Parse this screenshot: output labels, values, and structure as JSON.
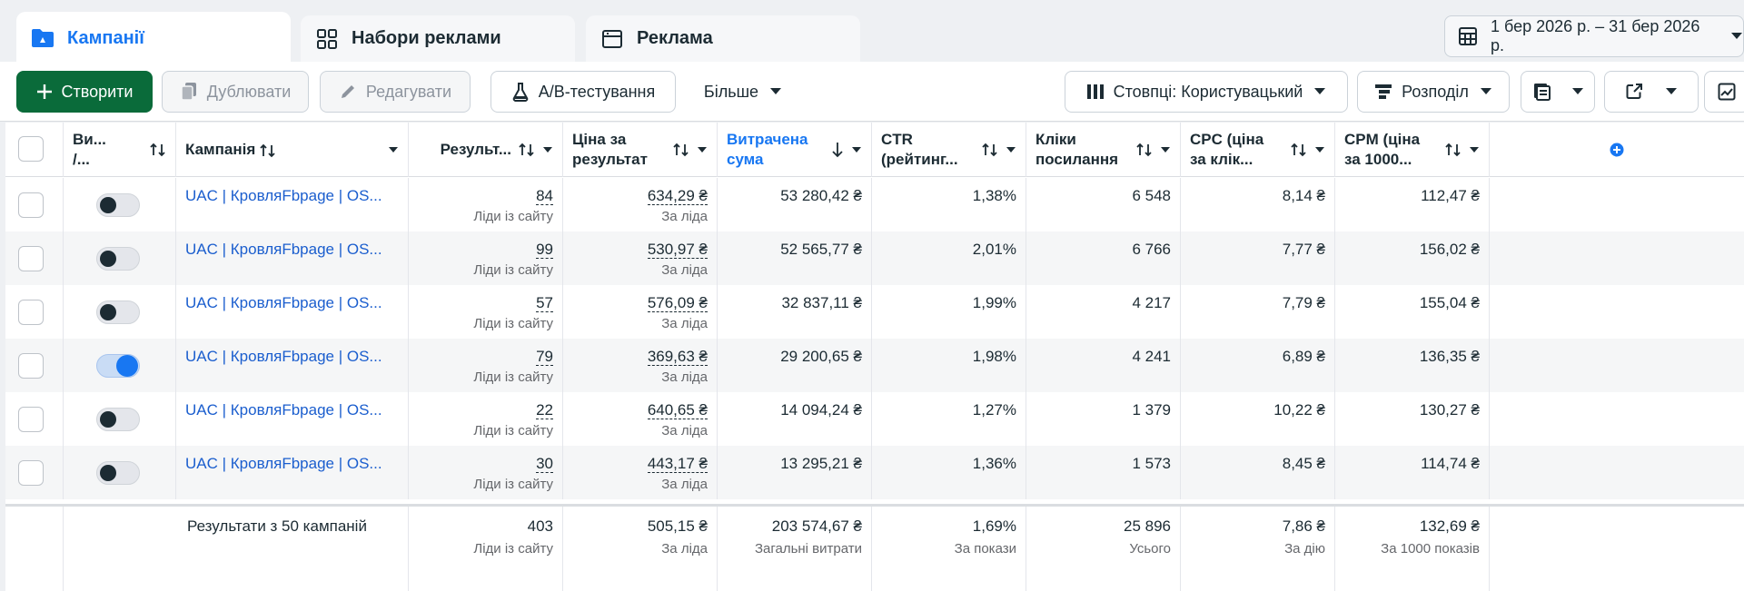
{
  "tabs": [
    {
      "label": "Кампанії",
      "active": true
    },
    {
      "label": "Набори реклами",
      "active": false
    },
    {
      "label": "Реклама",
      "active": false
    }
  ],
  "date_range": "1 бер 2026 р. – 31 бер 2026 р.",
  "toolbar": {
    "create": "Створити",
    "duplicate": "Дублювати",
    "edit": "Редагувати",
    "ab_test": "A/B-тестування",
    "more": "Більше",
    "columns": "Стовпці: Користувацький",
    "breakdown": "Розподіл"
  },
  "columns": {
    "delivery_l1": "Ви...",
    "delivery_l2": "/...",
    "campaign": "Кампанія",
    "results": "Результ...",
    "cpr_l1": "Ціна за",
    "cpr_l2": "результат",
    "spent_l1": "Витрачена",
    "spent_l2": "сума",
    "ctr_l1": "CTR",
    "ctr_l2": "(рейтинг...",
    "clicks_l1": "Кліки",
    "clicks_l2": "посилання",
    "cpc_l1": "CPC (ціна",
    "cpc_l2": "за клік...",
    "cpm_l1": "CPM (ціна",
    "cpm_l2": "за 1000..."
  },
  "rows": [
    {
      "name": "UAC | КровляFbpage | OS...",
      "on": false,
      "results": "84",
      "results_sub": "Ліди із сайту",
      "cpr": "634,29 ₴",
      "cpr_sub": "За ліда",
      "spent": "53 280,42 ₴",
      "ctr": "1,38%",
      "clicks": "6 548",
      "cpc": "8,14 ₴",
      "cpm": "112,47 ₴"
    },
    {
      "name": "UAC | КровляFbpage | OS...",
      "on": false,
      "results": "99",
      "results_sub": "Ліди із сайту",
      "cpr": "530,97 ₴",
      "cpr_sub": "За ліда",
      "spent": "52 565,77 ₴",
      "ctr": "2,01%",
      "clicks": "6 766",
      "cpc": "7,77 ₴",
      "cpm": "156,02 ₴"
    },
    {
      "name": "UAC | КровляFbpage | OS...",
      "on": false,
      "results": "57",
      "results_sub": "Ліди із сайту",
      "cpr": "576,09 ₴",
      "cpr_sub": "За ліда",
      "spent": "32 837,11 ₴",
      "ctr": "1,99%",
      "clicks": "4 217",
      "cpc": "7,79 ₴",
      "cpm": "155,04 ₴"
    },
    {
      "name": "UAC | КровляFbpage | OS...",
      "on": true,
      "results": "79",
      "results_sub": "Ліди із сайту",
      "cpr": "369,63 ₴",
      "cpr_sub": "За ліда",
      "spent": "29 200,65 ₴",
      "ctr": "1,98%",
      "clicks": "4 241",
      "cpc": "6,89 ₴",
      "cpm": "136,35 ₴"
    },
    {
      "name": "UAC | КровляFbpage | OS...",
      "on": false,
      "results": "22",
      "results_sub": "Ліди із сайту",
      "cpr": "640,65 ₴",
      "cpr_sub": "За ліда",
      "spent": "14 094,24 ₴",
      "ctr": "1,27%",
      "clicks": "1 379",
      "cpc": "10,22 ₴",
      "cpm": "130,27 ₴"
    },
    {
      "name": "UAC | КровляFbpage | OS...",
      "on": false,
      "results": "30",
      "results_sub": "Ліди із сайту",
      "cpr": "443,17 ₴",
      "cpr_sub": "За ліда",
      "spent": "13 295,21 ₴",
      "ctr": "1,36%",
      "clicks": "1 573",
      "cpc": "8,45 ₴",
      "cpm": "114,74 ₴"
    }
  ],
  "totals": {
    "label": "Результати з 50 кампаній",
    "results": "403",
    "results_sub": "Ліди із сайту",
    "cpr": "505,15 ₴",
    "cpr_sub": "За ліда",
    "spent": "203 574,67 ₴",
    "spent_sub": "Загальні витрати",
    "ctr": "1,69%",
    "ctr_sub": "За покази",
    "clicks": "25 896",
    "clicks_sub": "Усього",
    "cpc": "7,86 ₴",
    "cpc_sub": "За дію",
    "cpm": "132,69 ₴",
    "cpm_sub": "За 1000 показів"
  },
  "colors": {
    "accent": "#1877f2",
    "primary_button": "#0a6b3a",
    "link": "#1b5ece"
  }
}
